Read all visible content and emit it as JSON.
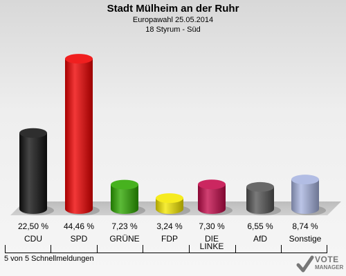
{
  "header": {
    "title": "Stadt Mülheim an der Ruhr",
    "subtitle1": "Europawahl 25.05.2014",
    "subtitle2": "18 Styrum - Süd"
  },
  "footnote": "5 von 5 Schnellmeldungen",
  "logo": {
    "line1": "VOTE",
    "line2": "MANAGER"
  },
  "chart_data": {
    "type": "bar",
    "categories": [
      "CDU",
      "SPD",
      "GRÜNE",
      "FDP",
      "DIE LINKE",
      "AfD",
      "Sonstige"
    ],
    "values": [
      22.5,
      44.46,
      7.23,
      3.24,
      7.3,
      6.55,
      8.74
    ],
    "value_labels": [
      "22,50 %",
      "44,46 %",
      "7,23 %",
      "3,24 %",
      "7,30 %",
      "6,55 %",
      "8,74 %"
    ],
    "colors": [
      "#111111",
      "#ee0000",
      "#2ea800",
      "#f5e800",
      "#c40a4a",
      "#555555",
      "#a8b4e0"
    ],
    "ylim": [
      0,
      50
    ]
  }
}
